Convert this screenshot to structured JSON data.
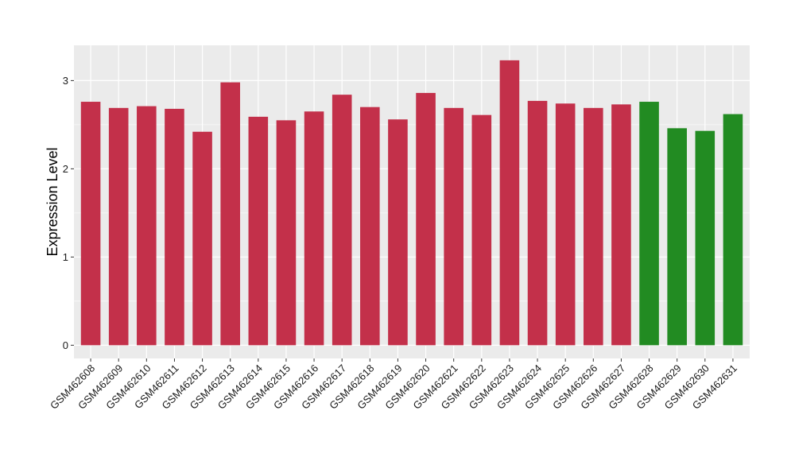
{
  "chart_data": {
    "type": "bar",
    "title": "",
    "xlabel": "",
    "ylabel": "Expression Level",
    "ylim": [
      -0.15,
      3.4
    ],
    "yticks": [
      0,
      1,
      2,
      3
    ],
    "grid": true,
    "categories": [
      "GSM462608",
      "GSM462609",
      "GSM462610",
      "GSM462611",
      "GSM462612",
      "GSM462613",
      "GSM462614",
      "GSM462615",
      "GSM462616",
      "GSM462617",
      "GSM462618",
      "GSM462619",
      "GSM462620",
      "GSM462621",
      "GSM462622",
      "GSM462623",
      "GSM462624",
      "GSM462625",
      "GSM462626",
      "GSM462627",
      "GSM462628",
      "GSM462629",
      "GSM462630",
      "GSM462631"
    ],
    "values": [
      2.76,
      2.69,
      2.71,
      2.68,
      2.42,
      2.98,
      2.59,
      2.55,
      2.65,
      2.84,
      2.7,
      2.56,
      2.86,
      2.69,
      2.61,
      3.23,
      2.77,
      2.74,
      2.69,
      2.73,
      2.76,
      2.46,
      2.43,
      2.62
    ],
    "groups": [
      "a",
      "a",
      "a",
      "a",
      "a",
      "a",
      "a",
      "a",
      "a",
      "a",
      "a",
      "a",
      "a",
      "a",
      "a",
      "a",
      "a",
      "a",
      "a",
      "a",
      "b",
      "b",
      "b",
      "b"
    ],
    "colors": {
      "a": "#c3304a",
      "b": "#228b22"
    },
    "panel_background": "#ebebeb",
    "gridline_color": "#ffffff"
  }
}
